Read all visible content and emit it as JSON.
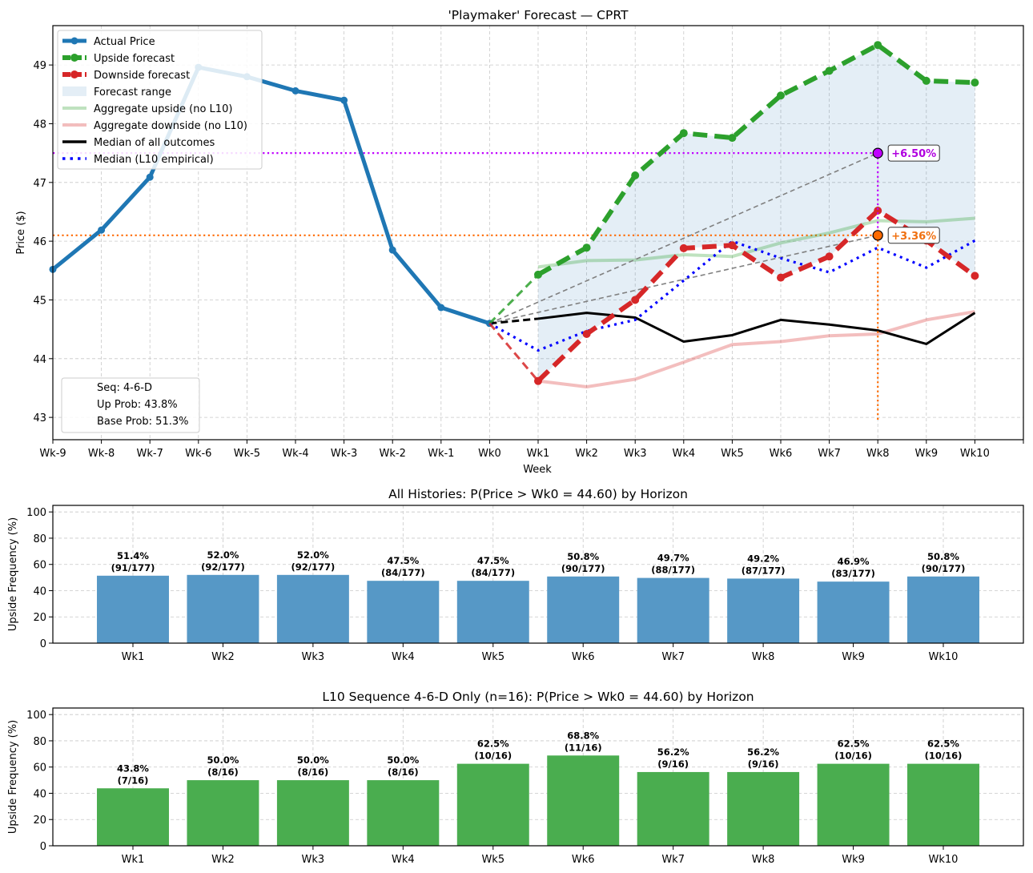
{
  "chart_data": [
    {
      "type": "line",
      "title": "'Playmaker' Forecast — CPRT",
      "xlabel": "Week",
      "ylabel": "Price ($)",
      "x_ticks": [
        "Wk-9",
        "Wk-8",
        "Wk-7",
        "Wk-6",
        "Wk-5",
        "Wk-4",
        "Wk-3",
        "Wk-2",
        "Wk-1",
        "Wk0",
        "Wk1",
        "Wk2",
        "Wk3",
        "Wk4",
        "Wk5",
        "Wk6",
        "Wk7",
        "Wk8",
        "Wk9",
        "Wk10",
        ""
      ],
      "xlim": [
        -9,
        11
      ],
      "ylim": [
        42.62,
        49.67
      ],
      "y_ticks": [
        43,
        44,
        45,
        46,
        47,
        48,
        49
      ],
      "grid": true,
      "legend_position": "top-left",
      "series": [
        {
          "name": "Actual Price",
          "color": "#1f77b4",
          "style": "solid-marker",
          "x": [
            -9,
            -8,
            -7,
            -6,
            -5,
            -4,
            -3,
            -2,
            -1,
            0
          ],
          "values": [
            45.52,
            46.19,
            47.09,
            48.96,
            48.8,
            48.56,
            48.4,
            45.85,
            44.87,
            44.6
          ]
        },
        {
          "name": "Upside forecast",
          "color": "#2ca02c",
          "style": "dashed-marker",
          "x": [
            0,
            1,
            2,
            3,
            4,
            5,
            6,
            7,
            8,
            9,
            10
          ],
          "values": [
            44.6,
            45.43,
            45.89,
            47.12,
            47.84,
            47.76,
            48.48,
            48.9,
            49.34,
            48.73,
            48.7
          ]
        },
        {
          "name": "Downside forecast",
          "color": "#d62728",
          "style": "dashed-marker",
          "x": [
            0,
            1,
            2,
            3,
            4,
            5,
            6,
            7,
            8,
            9,
            10
          ],
          "values": [
            44.6,
            43.62,
            44.42,
            45.0,
            45.88,
            45.93,
            45.38,
            45.74,
            46.52,
            46.01,
            45.41
          ]
        },
        {
          "name": "Forecast range",
          "color": "#d6e6f2",
          "style": "fill",
          "x": [
            1,
            2,
            3,
            4,
            5,
            6,
            7,
            8,
            9,
            10
          ]
        },
        {
          "name": "Aggregate upside (no L10)",
          "color": "#b7dfb4",
          "style": "solid-light",
          "x": [
            1,
            2,
            3,
            4,
            5,
            6,
            7,
            8,
            9,
            10
          ],
          "values": [
            45.56,
            45.67,
            45.68,
            45.77,
            45.74,
            45.97,
            46.14,
            46.35,
            46.33,
            46.39
          ]
        },
        {
          "name": "Aggregate downside (no L10)",
          "color": "#f2bcbd",
          "style": "solid-light",
          "x": [
            1,
            2,
            3,
            4,
            5,
            6,
            7,
            8,
            9,
            10
          ],
          "values": [
            43.62,
            43.52,
            43.65,
            43.94,
            44.24,
            44.29,
            44.39,
            44.42,
            44.66,
            44.8
          ]
        },
        {
          "name": "Median of all outcomes",
          "color": "#000000",
          "style": "solid",
          "x": [
            0,
            1,
            2,
            3,
            4,
            5,
            6,
            7,
            8,
            9,
            10
          ],
          "values": [
            44.6,
            44.68,
            44.78,
            44.7,
            44.29,
            44.4,
            44.66,
            44.58,
            44.48,
            44.25,
            44.78
          ]
        },
        {
          "name": "Median (L10 empirical)",
          "color": "#0000ff",
          "style": "dotted",
          "x": [
            0,
            1,
            2,
            3,
            4,
            5,
            6,
            7,
            8,
            9,
            10
          ],
          "values": [
            44.6,
            44.14,
            44.47,
            44.66,
            45.33,
            46.0,
            45.71,
            45.47,
            45.89,
            45.55,
            46.01
          ]
        }
      ],
      "targets": [
        {
          "label": "+6.50%",
          "x": 8,
          "value": 47.5,
          "color": "#bf00ff",
          "text_color": "#b000e0"
        },
        {
          "label": "+3.36%",
          "x": 8,
          "value": 46.1,
          "color": "#ff6a00",
          "text_color": "#f07010"
        }
      ],
      "base_price": 44.6,
      "info_box": [
        "Seq: 4-6-D",
        "Up Prob: 43.8%",
        "Base Prob: 51.3%"
      ]
    },
    {
      "type": "bar",
      "title": "All Histories: P(Price > Wk0 = 44.60) by Horizon",
      "xlabel": "",
      "ylabel": "Upside Frequency (%)",
      "ylim": [
        0,
        105
      ],
      "y_ticks": [
        0,
        20,
        40,
        60,
        80,
        100
      ],
      "grid": true,
      "color": "#5698c6",
      "categories": [
        "Wk1",
        "Wk2",
        "Wk3",
        "Wk4",
        "Wk5",
        "Wk6",
        "Wk7",
        "Wk8",
        "Wk9",
        "Wk10"
      ],
      "values": [
        51.4,
        52.0,
        52.0,
        47.5,
        47.5,
        50.8,
        49.7,
        49.2,
        46.9,
        50.8
      ],
      "labels": [
        "51.4%",
        "52.0%",
        "52.0%",
        "47.5%",
        "47.5%",
        "50.8%",
        "49.7%",
        "49.2%",
        "46.9%",
        "50.8%"
      ],
      "counts": [
        "(91/177)",
        "(92/177)",
        "(92/177)",
        "(84/177)",
        "(84/177)",
        "(90/177)",
        "(88/177)",
        "(87/177)",
        "(83/177)",
        "(90/177)"
      ]
    },
    {
      "type": "bar",
      "title": "L10 Sequence 4-6-D Only (n=16): P(Price > Wk0 = 44.60) by Horizon",
      "xlabel": "",
      "ylabel": "Upside Frequency (%)",
      "ylim": [
        0,
        105
      ],
      "y_ticks": [
        0,
        20,
        40,
        60,
        80,
        100
      ],
      "grid": true,
      "color": "#4aad4f",
      "categories": [
        "Wk1",
        "Wk2",
        "Wk3",
        "Wk4",
        "Wk5",
        "Wk6",
        "Wk7",
        "Wk8",
        "Wk9",
        "Wk10"
      ],
      "values": [
        43.8,
        50.0,
        50.0,
        50.0,
        62.5,
        68.8,
        56.2,
        56.2,
        62.5,
        62.5
      ],
      "labels": [
        "43.8%",
        "50.0%",
        "50.0%",
        "50.0%",
        "62.5%",
        "68.8%",
        "56.2%",
        "56.2%",
        "62.5%",
        "62.5%"
      ],
      "counts": [
        "(7/16)",
        "(8/16)",
        "(8/16)",
        "(8/16)",
        "(10/16)",
        "(11/16)",
        "(9/16)",
        "(9/16)",
        "(10/16)",
        "(10/16)"
      ]
    }
  ]
}
